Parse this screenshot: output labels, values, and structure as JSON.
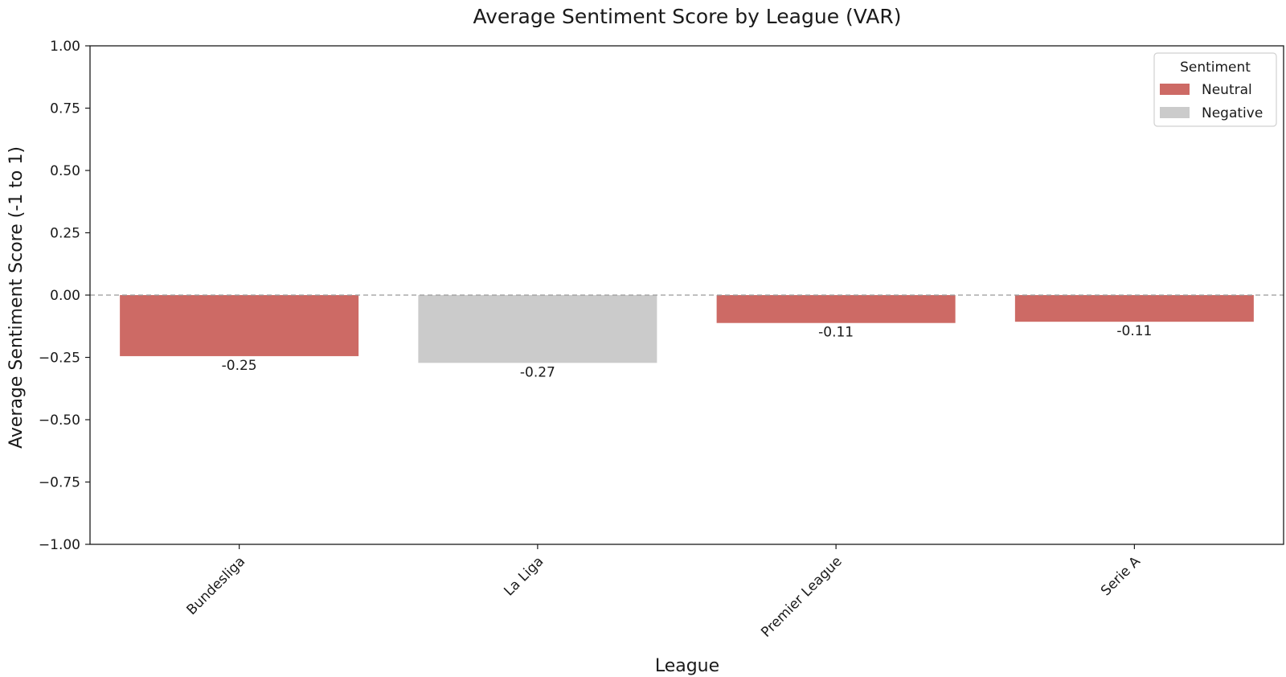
{
  "chart_data": {
    "type": "bar",
    "title": "Average Sentiment Score by League (VAR)",
    "xlabel": "League",
    "ylabel": "Average Sentiment Score (-1 to 1)",
    "categories": [
      "Bundesliga",
      "La Liga",
      "Premier League",
      "Serie A"
    ],
    "values": [
      -0.245,
      -0.272,
      -0.112,
      -0.107
    ],
    "value_labels": [
      "-0.25",
      "-0.27",
      "-0.11",
      "-0.11"
    ],
    "bar_sentiment": [
      "Neutral",
      "Negative",
      "Neutral",
      "Neutral"
    ],
    "ylim": [
      -1.0,
      1.0
    ],
    "yticks": [
      1.0,
      0.75,
      0.5,
      0.25,
      0.0,
      -0.25,
      -0.5,
      -0.75,
      -1.0
    ],
    "ytick_labels": [
      "1.00",
      "0.75",
      "0.50",
      "0.25",
      "0.00",
      "−0.25",
      "−0.50",
      "−0.75",
      "−1.00"
    ],
    "reference_line": 0.0,
    "grid": false,
    "legend": {
      "title": "Sentiment",
      "placement": "top-right",
      "entries": [
        {
          "label": "Neutral",
          "color": "#cd6a65"
        },
        {
          "label": "Negative",
          "color": "#cbcbcb"
        }
      ]
    },
    "colors": {
      "Neutral": "#cd6a65",
      "Negative": "#cbcbcb",
      "reference_line": "#999999"
    }
  }
}
